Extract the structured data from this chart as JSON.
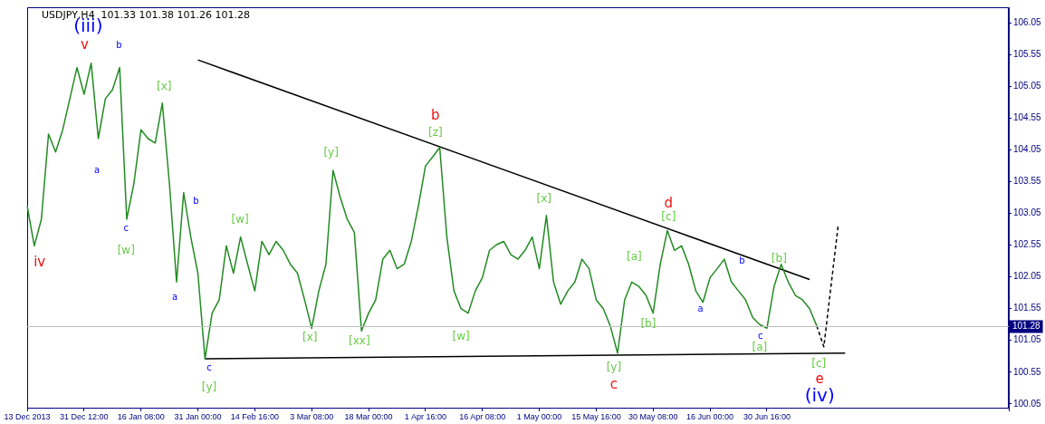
{
  "chart_data": {
    "type": "line",
    "title": "USDJPY,H4  101.33 101.38 101.26 101.28",
    "categories": [
      "13 Dec 2013",
      null,
      null,
      null,
      null,
      null,
      null,
      null,
      "31 Dec 12:00",
      null,
      null,
      null,
      null,
      null,
      null,
      null,
      "16 Jan 08:00",
      null,
      null,
      null,
      null,
      null,
      null,
      null,
      "31 Jan 00:00",
      null,
      null,
      null,
      null,
      null,
      null,
      null,
      "14 Feb 16:00",
      null,
      null,
      null,
      null,
      null,
      null,
      null,
      "3 Mar 08:00",
      null,
      null,
      null,
      null,
      null,
      null,
      null,
      "18 Mar 00:00",
      null,
      null,
      null,
      null,
      null,
      null,
      null,
      "1 Apr 16:00",
      null,
      null,
      null,
      null,
      null,
      null,
      null,
      "16 Apr 08:00",
      null,
      null,
      null,
      null,
      null,
      null,
      null,
      "1 May 00:00",
      null,
      null,
      null,
      null,
      null,
      null,
      null,
      "15 May 16:00",
      null,
      null,
      null,
      null,
      null,
      null,
      null,
      "30 May 08:00",
      null,
      null,
      null,
      null,
      null,
      null,
      null,
      "16 Jun 00:00",
      null,
      null,
      null,
      null,
      null,
      null,
      null,
      "30 Jun 16:00",
      null,
      null,
      null,
      null,
      null,
      null,
      null,
      null,
      null,
      null,
      null,
      null,
      null,
      null,
      null,
      null,
      null,
      null,
      null,
      null,
      null,
      null,
      null,
      null,
      null,
      null,
      null,
      null,
      null,
      null,
      null,
      null,
      null,
      null
    ],
    "ylim": [
      99.99,
      106.3
    ],
    "yticks": [
      {
        "value": 100.05,
        "label": "100.05"
      },
      {
        "value": 100.55,
        "label": "100.55"
      },
      {
        "value": 101.05,
        "label": "101.05"
      },
      {
        "value": 101.55,
        "label": "101.55"
      },
      {
        "value": 102.05,
        "label": "102.05"
      },
      {
        "value": 102.55,
        "label": "102.55"
      },
      {
        "value": 103.05,
        "label": "103.05"
      },
      {
        "value": 103.55,
        "label": "103.55"
      },
      {
        "value": 104.05,
        "label": "104.05"
      },
      {
        "value": 104.55,
        "label": "104.55"
      },
      {
        "value": 105.05,
        "label": "105.05"
      },
      {
        "value": 105.55,
        "label": "105.55"
      },
      {
        "value": 106.05,
        "label": "106.05"
      }
    ],
    "series": [
      {
        "color": "#228b22",
        "values": [
          103.17,
          102.54,
          102.96,
          104.3,
          104.02,
          104.37,
          104.86,
          105.35,
          104.93,
          105.42,
          104.23,
          104.86,
          105.0,
          105.35,
          102.96,
          103.52,
          104.37,
          104.23,
          104.16,
          104.79,
          103.52,
          101.97,
          103.38,
          102.68,
          102.11,
          100.76,
          101.48,
          101.69,
          102.54,
          102.11,
          102.68,
          102.25,
          101.83,
          102.61,
          102.4,
          102.61,
          102.47,
          102.25,
          102.11,
          101.69,
          101.24,
          101.83,
          102.25,
          103.73,
          103.31,
          102.96,
          102.75,
          101.2,
          101.48,
          101.69,
          102.33,
          102.47,
          102.18,
          102.25,
          102.61,
          103.17,
          103.8,
          103.94,
          104.09,
          102.68,
          101.83,
          101.55,
          101.48,
          101.83,
          102.04,
          102.47,
          102.56,
          102.61,
          102.4,
          102.33,
          102.47,
          102.68,
          102.18,
          103.02,
          101.97,
          101.62,
          101.83,
          101.97,
          102.33,
          102.18,
          101.69,
          101.55,
          101.27,
          100.85,
          101.69,
          101.97,
          101.9,
          101.76,
          101.48,
          102.25,
          102.78,
          102.47,
          102.54,
          102.25,
          101.83,
          101.65,
          102.04,
          102.18,
          102.33,
          101.97,
          101.83,
          101.69,
          101.41,
          101.3,
          101.24,
          101.9,
          102.25,
          101.97,
          101.76,
          101.69,
          101.55,
          101.28,
          null,
          null,
          null,
          null,
          null,
          null,
          null,
          null,
          null,
          null,
          null,
          null,
          null,
          null,
          null,
          null,
          null,
          null,
          null,
          null,
          null,
          null,
          null,
          null,
          null,
          null,
          null
        ]
      },
      {
        "color": "#000000",
        "values": [
          null,
          null,
          null,
          null,
          null,
          null,
          null,
          null,
          null,
          null,
          null,
          null,
          null,
          null,
          null,
          null,
          null,
          null,
          null,
          null,
          null,
          null,
          null,
          null,
          105.47,
          null,
          null,
          null,
          null,
          null,
          null,
          null,
          null,
          null,
          null,
          null,
          null,
          null,
          null,
          null,
          null,
          null,
          null,
          null,
          null,
          null,
          null,
          null,
          null,
          null,
          null,
          null,
          null,
          null,
          null,
          null,
          null,
          null,
          null,
          null,
          null,
          null,
          null,
          null,
          null,
          null,
          null,
          null,
          null,
          null,
          null,
          null,
          null,
          null,
          null,
          null,
          null,
          null,
          null,
          null,
          null,
          null,
          null,
          null,
          null,
          null,
          null,
          null,
          null,
          null,
          null,
          null,
          null,
          null,
          null,
          null,
          null,
          null,
          null,
          null,
          null,
          null,
          null,
          null,
          null,
          null,
          null,
          null,
          null,
          null,
          102.01,
          null,
          null,
          null,
          null,
          null,
          null,
          null,
          null,
          null,
          null,
          null,
          null,
          null,
          null,
          null,
          null,
          null,
          null,
          null,
          null,
          null,
          null,
          null,
          null,
          null,
          null,
          null,
          null
        ]
      },
      {
        "color": "#000000",
        "values": [
          null,
          null,
          null,
          null,
          null,
          null,
          null,
          null,
          null,
          null,
          null,
          null,
          null,
          null,
          null,
          null,
          null,
          null,
          null,
          null,
          null,
          null,
          null,
          null,
          null,
          100.76,
          null,
          null,
          null,
          null,
          null,
          null,
          null,
          null,
          null,
          null,
          null,
          null,
          null,
          null,
          null,
          null,
          null,
          null,
          null,
          null,
          null,
          null,
          null,
          null,
          null,
          null,
          null,
          null,
          null,
          null,
          null,
          null,
          null,
          null,
          null,
          null,
          null,
          null,
          null,
          null,
          null,
          null,
          null,
          null,
          null,
          null,
          null,
          null,
          null,
          null,
          null,
          null,
          null,
          null,
          null,
          null,
          null,
          null,
          null,
          null,
          null,
          null,
          null,
          null,
          null,
          null,
          null,
          null,
          null,
          null,
          null,
          null,
          null,
          null,
          null,
          null,
          null,
          null,
          null,
          null,
          null,
          null,
          null,
          null,
          null,
          null,
          null,
          null,
          null,
          100.85,
          null,
          null,
          null,
          null,
          null,
          null,
          null,
          null,
          null,
          null,
          null,
          null,
          null,
          null,
          null,
          null,
          null,
          null,
          null,
          null,
          null,
          null,
          null
        ]
      },
      {
        "color": "#000000",
        "line_style": "dashed",
        "values": [
          null,
          null,
          null,
          null,
          null,
          null,
          null,
          null,
          null,
          null,
          null,
          null,
          null,
          null,
          null,
          null,
          null,
          null,
          null,
          null,
          null,
          null,
          null,
          null,
          null,
          null,
          null,
          null,
          null,
          null,
          null,
          null,
          null,
          null,
          null,
          null,
          null,
          null,
          null,
          null,
          null,
          null,
          null,
          null,
          null,
          null,
          null,
          null,
          null,
          null,
          null,
          null,
          null,
          null,
          null,
          null,
          null,
          null,
          null,
          null,
          null,
          null,
          null,
          null,
          null,
          null,
          null,
          null,
          null,
          null,
          null,
          null,
          null,
          null,
          null,
          null,
          null,
          null,
          null,
          null,
          null,
          null,
          null,
          null,
          null,
          null,
          null,
          null,
          null,
          null,
          null,
          null,
          null,
          null,
          null,
          null,
          null,
          null,
          null,
          null,
          null,
          null,
          null,
          null,
          null,
          null,
          null,
          null,
          null,
          null,
          null,
          101.28,
          100.95,
          null,
          102.85,
          null,
          null,
          null,
          null,
          null,
          null,
          null,
          null,
          null,
          null,
          null,
          null,
          null,
          null,
          null,
          null,
          null,
          null,
          null,
          null,
          null,
          null,
          null,
          null
        ]
      }
    ],
    "ref_lines": [
      {
        "axis": "y",
        "value": 101.28,
        "label": "101.28",
        "color": "#c0c0c0"
      }
    ],
    "annotations": [
      "(iii)",
      "v",
      "b",
      "a",
      "c",
      "[w]",
      "iv",
      "[x]",
      "b",
      "a",
      "c",
      "[y]",
      "[w]",
      "[y]",
      "[x]",
      "[xx]",
      "b",
      "[z]",
      "[w]",
      "[x]",
      "d",
      "[c]",
      "[a]",
      "[b]",
      "[y]",
      "c",
      "a",
      "b",
      "[b]",
      "c",
      "[a]",
      "[c]",
      "e",
      "(iv)"
    ]
  }
}
